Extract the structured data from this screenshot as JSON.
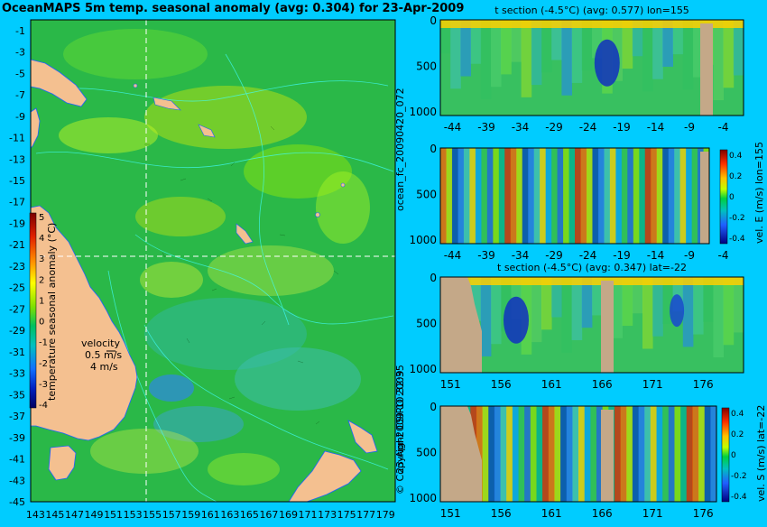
{
  "main_map": {
    "title": "OceanMAPS 5m temp. seasonal anomaly (avg: 0.304) for 23-Apr-2009",
    "lat_labels": [
      "-1",
      "-3",
      "-5",
      "-7",
      "-9",
      "-11",
      "-13",
      "-15",
      "-17",
      "-19",
      "-21",
      "-23",
      "-25",
      "-27",
      "-29",
      "-31",
      "-33",
      "-35",
      "-37",
      "-39",
      "-41",
      "-43",
      "-45"
    ],
    "lon_labels": [
      "143",
      "145",
      "147",
      "149",
      "151",
      "153",
      "155",
      "157",
      "159",
      "161",
      "163",
      "165",
      "167",
      "169",
      "171",
      "173",
      "175",
      "177",
      "179"
    ],
    "colorbar_label": "temperature seasonal anomaly (°C)",
    "colorbar_ticks": [
      "5",
      "4",
      "3",
      "2",
      "1",
      "0",
      "-1",
      "-2",
      "-3",
      "-4"
    ],
    "velocity_key": {
      "title": "velocity",
      "value": "0.5 m/s",
      "scale": "4 m/s"
    },
    "colors": {
      "land": "#f4c090",
      "frame": "#00ccff"
    }
  },
  "side_labels": {
    "run_id": "ocean_fc_20090420_072",
    "issued": "23-Apr-2009 10:32:35",
    "copyright": "© Copyright CSIRO 2009"
  },
  "sections": [
    {
      "title": "t section (-4.5°C) (avg: 0.577) lon=155",
      "x_ticks": [
        "-44",
        "-39",
        "-34",
        "-29",
        "-24",
        "-19",
        "-14",
        "-9",
        "-4"
      ],
      "y_ticks": [
        "0",
        "500",
        "1000"
      ],
      "colorbar": null
    },
    {
      "title": "",
      "x_ticks": [
        "-44",
        "-39",
        "-34",
        "-29",
        "-24",
        "-19",
        "-14",
        "-9",
        "-4"
      ],
      "y_ticks": [
        "0",
        "500",
        "1000"
      ],
      "colorbar": {
        "label": "vel. E (m/s) lon=155",
        "ticks": [
          "0.4",
          "0.2",
          "0",
          "-0.2",
          "-0.4"
        ]
      }
    },
    {
      "title": "t section (-4.5°C) (avg: 0.347) lat=-22",
      "x_ticks": [
        "151",
        "156",
        "161",
        "166",
        "171",
        "176"
      ],
      "y_ticks": [
        "0",
        "500",
        "1000"
      ],
      "colorbar": null
    },
    {
      "title": "",
      "x_ticks": [
        "151",
        "156",
        "161",
        "166",
        "171",
        "176"
      ],
      "y_ticks": [
        "0",
        "500",
        "1000"
      ],
      "colorbar": {
        "label": "vel. S (m/s) lat=-22",
        "ticks": [
          "0.4",
          "0.2",
          "0",
          "-0.2",
          "-0.4"
        ]
      }
    }
  ],
  "chart_data": [
    {
      "type": "heatmap",
      "title": "OceanMAPS 5m temp. seasonal anomaly (avg: 0.304) for 23-Apr-2009",
      "xlabel": "",
      "ylabel": "",
      "x_range": [
        142.5,
        180
      ],
      "y_range": [
        -45,
        0
      ],
      "color_range": [
        -4,
        5
      ],
      "colorbar_label": "temperature seasonal anomaly (°C)",
      "average": 0.304
    },
    {
      "type": "heatmap",
      "title": "t section (-4.5°C) (avg: 0.577) lon=155",
      "x_range": [
        -45,
        -1
      ],
      "y_range": [
        1050,
        0
      ],
      "average": 0.577
    },
    {
      "type": "heatmap",
      "title": "",
      "x_range": [
        -45,
        -1
      ],
      "y_range": [
        1050,
        0
      ],
      "color_range": [
        -0.4,
        0.4
      ],
      "colorbar_label": "vel. E (m/s) lon=155"
    },
    {
      "type": "heatmap",
      "title": "t section (-4.5°C) (avg: 0.347) lat=-22",
      "x_range": [
        150,
        180
      ],
      "y_range": [
        1050,
        0
      ],
      "average": 0.347
    },
    {
      "type": "heatmap",
      "title": "",
      "x_range": [
        150,
        180
      ],
      "y_range": [
        1050,
        0
      ],
      "color_range": [
        -0.4,
        0.4
      ],
      "colorbar_label": "vel. S (m/s) lat=-22"
    }
  ]
}
